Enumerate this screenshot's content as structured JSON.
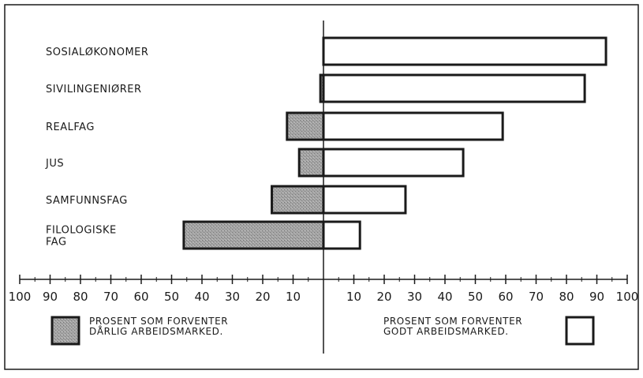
{
  "chart_data": {
    "type": "bar",
    "orientation": "horizontal-diverging",
    "categories": [
      "SOSIALØKONOMER",
      "SIVILINGENIØRER",
      "REALFAG",
      "JUS",
      "SAMFUNNSFAG",
      "FILOLOGISKE FAG"
    ],
    "category_lines": [
      [
        "SOSIALØKONOMER"
      ],
      [
        "SIVILINGENIØRER"
      ],
      [
        "REALFAG"
      ],
      [
        "JUS"
      ],
      [
        "SAMFUNNSFAG"
      ],
      [
        "FILOLOGISKE",
        "FAG"
      ]
    ],
    "series": [
      {
        "name": "PROSENT SOM FORVENTER DÅRLIG ARBEIDSMARKED.",
        "name_lines": [
          "PROSENT SOM FORVENTER",
          "DÅRLIG ARBEIDSMARKED."
        ],
        "direction": "left",
        "fill": "shaded",
        "values": [
          0,
          1,
          12,
          8,
          17,
          46
        ]
      },
      {
        "name": "PROSENT SOM FORVENTER GODT ARBEIDSMARKED.",
        "name_lines": [
          "PROSENT SOM FORVENTER",
          "GODT ARBEIDSMARKED."
        ],
        "direction": "right",
        "fill": "open",
        "values": [
          93,
          86,
          59,
          46,
          27,
          12
        ]
      }
    ],
    "axis": {
      "range_left": 100,
      "range_right": 100,
      "tick_labels_left": [
        "100",
        "90",
        "80",
        "70",
        "60",
        "50",
        "40",
        "30",
        "20",
        "10"
      ],
      "tick_labels_right": [
        "10",
        "20",
        "30",
        "40",
        "50",
        "60",
        "70",
        "80",
        "90",
        "100"
      ]
    },
    "colors": {
      "ink": "#1a1a1a",
      "shade": "#9a9a9a",
      "open": "#ffffff"
    },
    "grid": false,
    "legend_placement": "bottom"
  }
}
